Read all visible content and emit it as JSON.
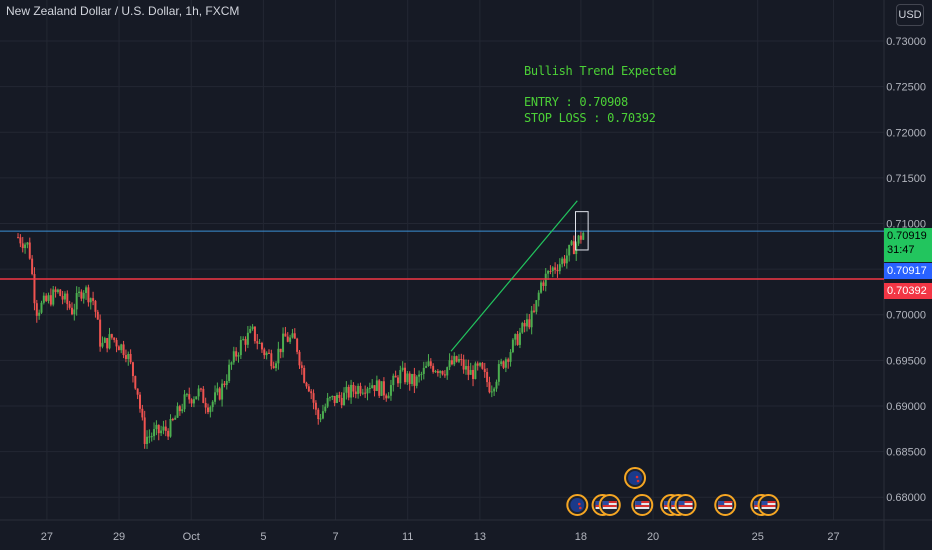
{
  "header": {
    "symbol_title": "New Zealand Dollar / U.S. Dollar, 1h, FXCM",
    "currency_label": "USD"
  },
  "annotation": {
    "headline": "Bullish Trend Expected",
    "entry": "ENTRY : 0.70908",
    "stop_loss": "STOP LOSS : 0.70392"
  },
  "price_tags": {
    "current_price": "0.70919",
    "countdown": "31:47",
    "blue_line_price": "0.70917",
    "stop_loss_price": "0.70392"
  },
  "colors": {
    "background": "#161a25",
    "grid": "#232733",
    "axis_text": "#b2b5be",
    "up_candle": "#26a69a",
    "up_candle_body": "#4caf50",
    "down_candle": "#ef5350",
    "annotation_text": "#4cd137",
    "current_price_tag": "#22c55e",
    "blue_line": "#2962ff",
    "stop_loss_line": "#f23645",
    "trend_line": "#22c55e"
  },
  "chart_data": {
    "type": "candlestick",
    "title": "New Zealand Dollar / U.S. Dollar, 1h, FXCM",
    "xlabel": "",
    "ylabel": "",
    "ylim": [
      0.6775,
      0.7345
    ],
    "grid": true,
    "y_ticks": [
      "0.73000",
      "0.72500",
      "0.72000",
      "0.71500",
      "0.71000",
      "0.70500",
      "0.70000",
      "0.69500",
      "0.69000",
      "0.68500",
      "0.68000"
    ],
    "x_ticks": [
      {
        "label": "27",
        "t": 0.8
      },
      {
        "label": "29",
        "t": 2.8
      },
      {
        "label": "Oct",
        "t": 4.8
      },
      {
        "label": "5",
        "t": 6.8
      },
      {
        "label": "7",
        "t": 8.8
      },
      {
        "label": "11",
        "t": 10.8
      },
      {
        "label": "13",
        "t": 12.8
      },
      {
        "label": "18",
        "t": 15.6
      },
      {
        "label": "20",
        "t": 17.6
      },
      {
        "label": "25",
        "t": 20.5
      },
      {
        "label": "27",
        "t": 22.6
      }
    ],
    "price_path": [
      [
        0.0,
        0.7085
      ],
      [
        0.3,
        0.7075
      ],
      [
        0.5,
        0.7005
      ],
      [
        0.8,
        0.7015
      ],
      [
        1.1,
        0.7025
      ],
      [
        1.5,
        0.7005
      ],
      [
        1.8,
        0.703
      ],
      [
        2.1,
        0.7015
      ],
      [
        2.3,
        0.6965
      ],
      [
        2.6,
        0.6975
      ],
      [
        3.0,
        0.696
      ],
      [
        3.3,
        0.692
      ],
      [
        3.5,
        0.6865
      ],
      [
        3.8,
        0.687
      ],
      [
        4.2,
        0.6875
      ],
      [
        4.6,
        0.6905
      ],
      [
        5.0,
        0.6915
      ],
      [
        5.3,
        0.69
      ],
      [
        5.6,
        0.6915
      ],
      [
        5.9,
        0.6945
      ],
      [
        6.2,
        0.697
      ],
      [
        6.5,
        0.698
      ],
      [
        6.8,
        0.696
      ],
      [
        7.1,
        0.695
      ],
      [
        7.4,
        0.6975
      ],
      [
        7.7,
        0.697
      ],
      [
        7.9,
        0.6935
      ],
      [
        8.1,
        0.692
      ],
      [
        8.3,
        0.6885
      ],
      [
        8.6,
        0.6905
      ],
      [
        9.0,
        0.691
      ],
      [
        9.4,
        0.692
      ],
      [
        9.8,
        0.6925
      ],
      [
        10.2,
        0.6915
      ],
      [
        10.6,
        0.6935
      ],
      [
        11.0,
        0.6925
      ],
      [
        11.4,
        0.6945
      ],
      [
        11.8,
        0.694
      ],
      [
        12.2,
        0.695
      ],
      [
        12.5,
        0.6935
      ],
      [
        12.8,
        0.694
      ],
      [
        13.1,
        0.692
      ],
      [
        13.4,
        0.6945
      ],
      [
        13.7,
        0.6965
      ],
      [
        14.0,
        0.6985
      ],
      [
        14.3,
        0.7
      ],
      [
        14.5,
        0.7035
      ],
      [
        14.8,
        0.705
      ],
      [
        15.1,
        0.706
      ],
      [
        15.3,
        0.707
      ],
      [
        15.5,
        0.708
      ],
      [
        15.7,
        0.7092
      ]
    ],
    "horizontal_lines": [
      {
        "name": "current",
        "value": 0.70917
      },
      {
        "name": "stop_loss",
        "value": 0.70392
      }
    ],
    "trend_line": {
      "start": [
        12.0,
        0.696
      ],
      "end": [
        15.5,
        0.7125
      ]
    },
    "highlight_box": {
      "start_t": 15.45,
      "end_t": 15.8,
      "low": 0.7071,
      "high": 0.7113
    },
    "events": [
      {
        "t": 15.5,
        "flag": "NZ",
        "row": 0
      },
      {
        "t": 16.2,
        "flag": "US",
        "row": 0
      },
      {
        "t": 16.4,
        "flag": "US",
        "row": 0
      },
      {
        "t": 17.1,
        "flag": "NZ",
        "row": 1
      },
      {
        "t": 17.3,
        "flag": "US",
        "row": 0
      },
      {
        "t": 18.1,
        "flag": "US",
        "row": 0
      },
      {
        "t": 18.3,
        "flag": "US",
        "row": 0
      },
      {
        "t": 18.5,
        "flag": "US",
        "row": 0
      },
      {
        "t": 19.6,
        "flag": "US",
        "row": 0
      },
      {
        "t": 20.6,
        "flag": "US",
        "row": 0
      },
      {
        "t": 20.8,
        "flag": "US",
        "row": 0
      }
    ]
  }
}
